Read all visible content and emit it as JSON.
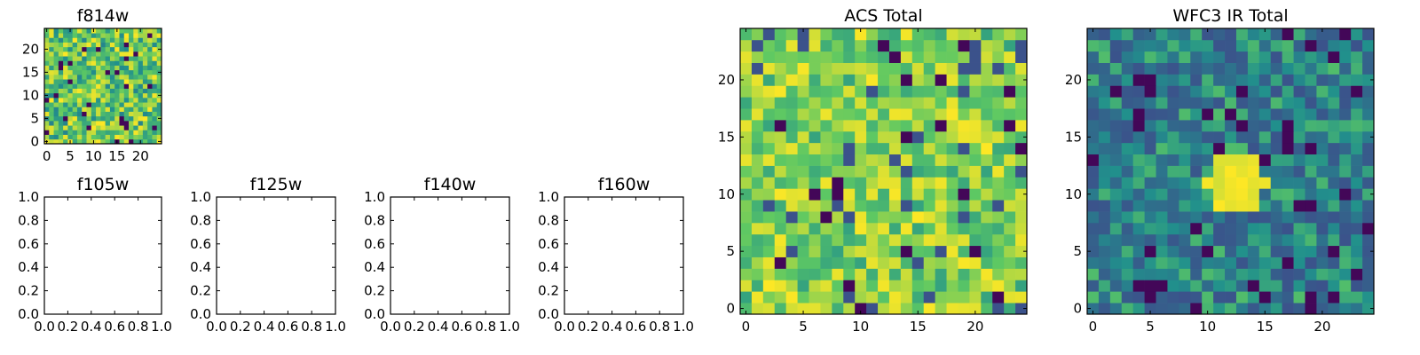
{
  "chart_data": [
    {
      "id": "f814w",
      "type": "heatmap",
      "title": "f814w",
      "grid_size": 25,
      "seed": 1814,
      "palette": "dense",
      "xlim": [
        -0.5,
        24.5
      ],
      "ylim": [
        -0.5,
        24.5
      ],
      "xticks": [
        0,
        5,
        10,
        15,
        20
      ],
      "xtick_labels": [
        "0",
        "5",
        "10",
        "15",
        "20"
      ],
      "yticks": [
        0,
        5,
        10,
        15,
        20
      ],
      "ytick_labels": [
        "0",
        "5",
        "10",
        "15",
        "20"
      ]
    },
    {
      "id": "f105w",
      "type": "empty",
      "title": "f105w",
      "xlim": [
        0,
        1
      ],
      "ylim": [
        0,
        1
      ],
      "xticks": [
        0,
        0.2,
        0.4,
        0.6,
        0.8,
        1.0
      ],
      "xtick_labels": [
        "0.0",
        "0.2",
        "0.4",
        "0.6",
        "0.8",
        "1.0"
      ],
      "yticks": [
        0,
        0.2,
        0.4,
        0.6,
        0.8,
        1.0
      ],
      "ytick_labels": [
        "0.0",
        "0.2",
        "0.4",
        "0.6",
        "0.8",
        "1.0"
      ]
    },
    {
      "id": "f125w",
      "type": "empty",
      "title": "f125w",
      "xlim": [
        0,
        1
      ],
      "ylim": [
        0,
        1
      ],
      "xticks": [
        0,
        0.2,
        0.4,
        0.6,
        0.8,
        1.0
      ],
      "xtick_labels": [
        "0.0",
        "0.2",
        "0.4",
        "0.6",
        "0.8",
        "1.0"
      ],
      "yticks": [
        0,
        0.2,
        0.4,
        0.6,
        0.8,
        1.0
      ],
      "ytick_labels": [
        "0.0",
        "0.2",
        "0.4",
        "0.6",
        "0.8",
        "1.0"
      ]
    },
    {
      "id": "f140w",
      "type": "empty",
      "title": "f140w",
      "xlim": [
        0,
        1
      ],
      "ylim": [
        0,
        1
      ],
      "xticks": [
        0,
        0.2,
        0.4,
        0.6,
        0.8,
        1.0
      ],
      "xtick_labels": [
        "0.0",
        "0.2",
        "0.4",
        "0.6",
        "0.8",
        "1.0"
      ],
      "yticks": [
        0,
        0.2,
        0.4,
        0.6,
        0.8,
        1.0
      ],
      "ytick_labels": [
        "0.0",
        "0.2",
        "0.4",
        "0.6",
        "0.8",
        "1.0"
      ]
    },
    {
      "id": "f160w",
      "type": "empty",
      "title": "f160w",
      "xlim": [
        0,
        1
      ],
      "ylim": [
        0,
        1
      ],
      "xticks": [
        0,
        0.2,
        0.4,
        0.6,
        0.8,
        1.0
      ],
      "xtick_labels": [
        "0.0",
        "0.2",
        "0.4",
        "0.6",
        "0.8",
        "1.0"
      ],
      "yticks": [
        0,
        0.2,
        0.4,
        0.6,
        0.8,
        1.0
      ],
      "ytick_labels": [
        "0.0",
        "0.2",
        "0.4",
        "0.6",
        "0.8",
        "1.0"
      ]
    },
    {
      "id": "acs-total",
      "type": "heatmap",
      "title": "ACS Total",
      "grid_size": 25,
      "seed": 2718,
      "palette": "bright",
      "xlim": [
        -0.5,
        24.5
      ],
      "ylim": [
        -0.5,
        24.5
      ],
      "xticks": [
        0,
        5,
        10,
        15,
        20
      ],
      "xtick_labels": [
        "0",
        "5",
        "10",
        "15",
        "20"
      ],
      "yticks": [
        0,
        5,
        10,
        15,
        20
      ],
      "ytick_labels": [
        "0",
        "5",
        "10",
        "15",
        "20"
      ]
    },
    {
      "id": "wfc3-ir-total",
      "type": "heatmap",
      "title": "WFC3 IR Total",
      "grid_size": 25,
      "seed": 3141,
      "palette": "dark",
      "source_center": [
        12.5,
        11
      ],
      "source_radius": 2.6,
      "xlim": [
        -0.5,
        24.5
      ],
      "ylim": [
        -0.5,
        24.5
      ],
      "xticks": [
        0,
        5,
        10,
        15,
        20
      ],
      "xtick_labels": [
        "0",
        "5",
        "10",
        "15",
        "20"
      ],
      "yticks": [
        0,
        5,
        10,
        15,
        20
      ],
      "ytick_labels": [
        "0",
        "5",
        "10",
        "15",
        "20"
      ]
    }
  ],
  "colormap": [
    "#440154",
    "#3b528b",
    "#21908c",
    "#5dc863",
    "#fde725"
  ]
}
